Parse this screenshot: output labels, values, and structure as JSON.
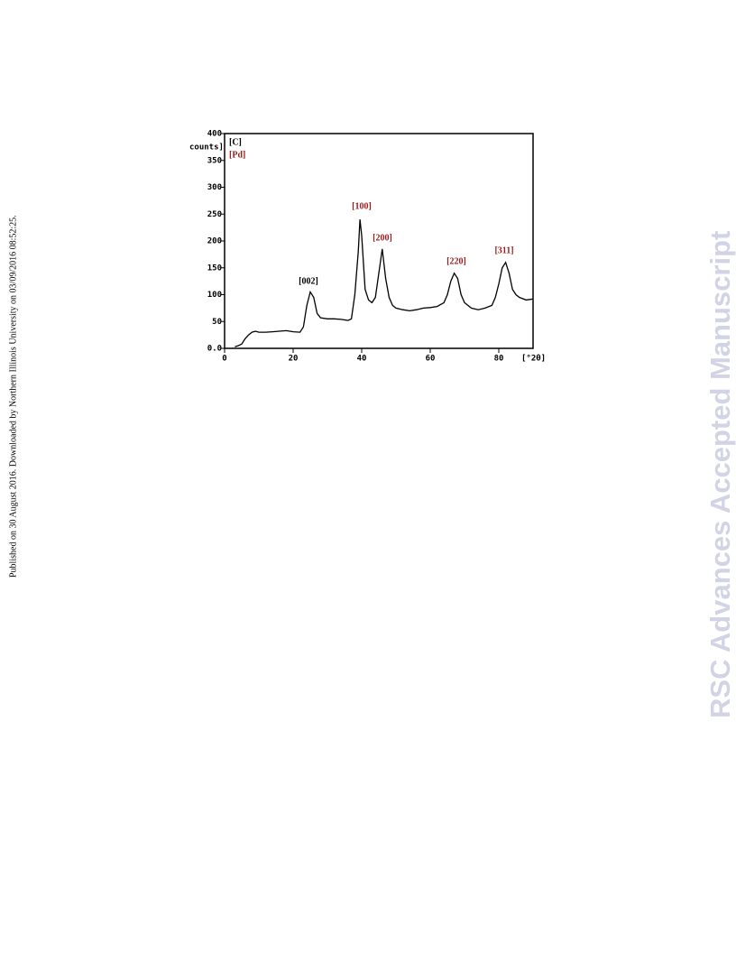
{
  "sidebar": "Published on 30 August 2016. Downloaded by Northern Illinois University on 03/09/2016 08:52:25.",
  "watermark": "RSC Advances Accepted Manuscript",
  "chart_data": {
    "type": "line",
    "ylabel": "counts]",
    "xlabel": "[°2θ]",
    "legend": [
      "[C]",
      "[Pd]"
    ],
    "annotations": [
      "[002]",
      "[100]",
      "[200]",
      "[220]",
      "[311]"
    ],
    "color": "#000000",
    "x": [
      3,
      4,
      5,
      6,
      7,
      8,
      9,
      10,
      12,
      14,
      16,
      18,
      20,
      22,
      23,
      24,
      25,
      26,
      27,
      28,
      30,
      32,
      34,
      36,
      37,
      38,
      39,
      39.5,
      40,
      41,
      42,
      43,
      44,
      45,
      46,
      47,
      48,
      49,
      50,
      52,
      54,
      56,
      58,
      60,
      62,
      64,
      65,
      66,
      67,
      68,
      69,
      70,
      72,
      74,
      76,
      78,
      79,
      80,
      81,
      82,
      83,
      84,
      85,
      86,
      88,
      90
    ],
    "y": [
      3,
      5,
      8,
      18,
      25,
      30,
      32,
      30,
      30,
      31,
      32,
      33,
      31,
      30,
      40,
      80,
      105,
      95,
      65,
      57,
      55,
      55,
      54,
      52,
      55,
      100,
      180,
      240,
      210,
      110,
      90,
      85,
      95,
      140,
      185,
      130,
      95,
      80,
      75,
      72,
      70,
      72,
      75,
      76,
      78,
      85,
      100,
      125,
      140,
      130,
      100,
      85,
      75,
      72,
      75,
      80,
      95,
      120,
      150,
      160,
      140,
      110,
      100,
      95,
      90,
      92
    ],
    "xlim": [
      0,
      90
    ],
    "xticks": [
      0,
      20,
      40,
      60,
      80
    ],
    "ylim": [
      0,
      400
    ],
    "yticks": [
      {
        "value": 0,
        "label": "0.0"
      },
      50,
      100,
      150,
      200,
      250,
      300,
      350,
      400
    ]
  }
}
